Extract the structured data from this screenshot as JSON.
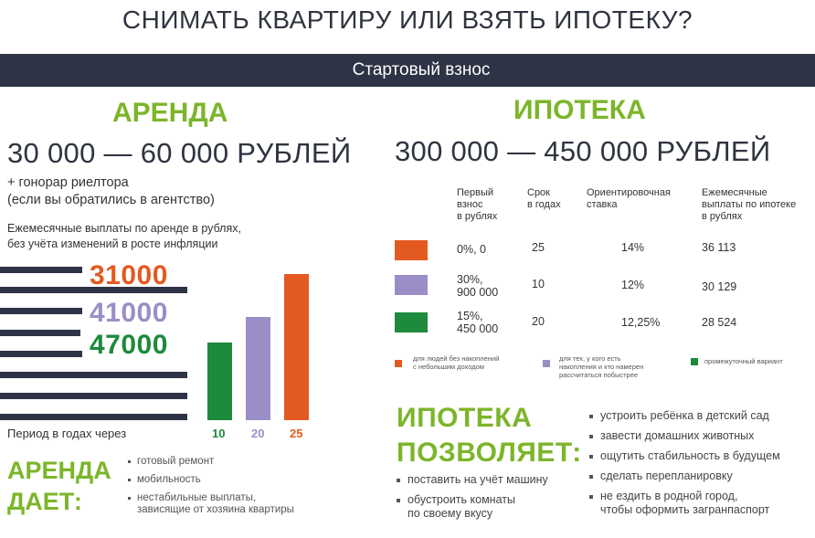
{
  "title": "СНИМАТЬ КВАРТИРУ ИЛИ ВЗЯТЬ ИПОТЕКУ?",
  "banner": "Стартовый взнос",
  "rent": {
    "heading": "АРЕНДА",
    "price": "30 000 — 60 000 РУБЛЕЙ",
    "note_line1": "+ гонорар риелтора",
    "note_line2": "(если вы обратились в агентство)",
    "monthly_line1": "Ежемесячные выплаты по аренде в рублях,",
    "monthly_line2": "без учёта изменений в росте инфляции",
    "period_label": "Период в годах через",
    "chart": {
      "categories": [
        "10",
        "20",
        "25"
      ],
      "values": [
        47000,
        41000,
        31000
      ],
      "value_labels": [
        "47000",
        "41000",
        "31000"
      ],
      "colors": [
        "#1e8a3c",
        "#9b8ec7",
        "#e35a21"
      ]
    },
    "gives_heading_line1": "АРЕНДА",
    "gives_heading_line2": "ДАЕТ:",
    "gives": [
      "готовый ремонт",
      "мобильность",
      "нестабильные выплаты,",
      "зависящие от хозяина квартиры"
    ]
  },
  "mortgage": {
    "heading": "ИПОТЕКА",
    "price": "300 000 — 450 000 РУБЛЕЙ",
    "table": {
      "headers": [
        [
          "Первый",
          "взнос",
          "в рублях"
        ],
        [
          "Срок",
          "в годах"
        ],
        [
          "Ориентировочная",
          "ставка"
        ],
        [
          "Ежемесячные",
          "выплаты по ипотеке",
          "в рублях"
        ]
      ],
      "rows": [
        {
          "color": "#e35a21",
          "first": [
            "0%, 0"
          ],
          "term": "25",
          "rate": "14%",
          "monthly": "36 113"
        },
        {
          "color": "#9b8ec7",
          "first": [
            "30%,",
            "900 000"
          ],
          "term": "10",
          "rate": "12%",
          "monthly": "30 129"
        },
        {
          "color": "#1e8a3c",
          "first": [
            "15%,",
            "450 000"
          ],
          "term": "20",
          "rate": "12,25%",
          "monthly": "28 524"
        }
      ]
    },
    "legend": [
      {
        "color": "#e35a21",
        "lines": [
          "для людей без накоплений",
          "с небольшим доходом"
        ]
      },
      {
        "color": "#9b8ec7",
        "lines": [
          "для тех, у кого есть",
          "накопления и кто намерен",
          "рассчитаться побыстрее"
        ]
      },
      {
        "color": "#1e8a3c",
        "lines": [
          "промежуточный вариант"
        ]
      }
    ],
    "allows_heading_line1": "ИПОТЕКА",
    "allows_heading_line2": "ПОЗВОЛЯЕТ:",
    "allows_left": [
      [
        "поставить на учёт машину"
      ],
      [
        "обустроить комнаты",
        "по своему вкусу"
      ]
    ],
    "allows_right": [
      [
        "устроить ребёнка в детский сад"
      ],
      [
        "завести домашних животных"
      ],
      [
        "ощутить стабильность в будущем"
      ],
      [
        "сделать перепланировку"
      ],
      [
        "не ездить в родной город,",
        "чтобы оформить загранпаспорт"
      ]
    ]
  }
}
